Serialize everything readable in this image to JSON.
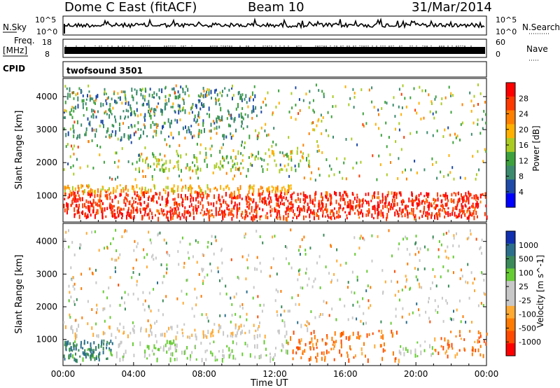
{
  "header": {
    "station": "Dome C East (fitACF)",
    "beam": "Beam 10",
    "date": "31/Mar/2014"
  },
  "summary_panels": {
    "nsky_label": "N.Sky",
    "nsky_ticks": [
      "10^5",
      "10^0"
    ],
    "nsearch_label": "N.Search",
    "nsearch_ticks": [
      "10^5",
      "10^0"
    ],
    "freq_label": "Freq.",
    "freq_unit": "[MHz]",
    "freq_ticks": [
      "18",
      "8"
    ],
    "nave_label": "Nave",
    "nave_ticks": [
      "60",
      "0"
    ],
    "cpid_label": "CPID",
    "cpid_value": "twofsound 3501"
  },
  "chart_data": [
    {
      "type": "heatmap",
      "panel": "power",
      "ylabel": "Slant Range [km]",
      "ylim": [
        200,
        4550
      ],
      "yticks": [
        1000,
        2000,
        3000,
        4000
      ],
      "xlim": [
        0,
        24
      ],
      "colorbar_label": "Power [dB]",
      "colorbar_ticks": [
        "28",
        "24",
        "20",
        "16",
        "12",
        "8",
        "4"
      ],
      "colorbar_colors": [
        "#ff0000",
        "#ff3a00",
        "#ff8000",
        "#ffb000",
        "#aacc22",
        "#3da23d",
        "#3c8a6e",
        "#1f4aa8",
        "#0000ff"
      ],
      "bands": [
        {
          "range_km": [
            350,
            1150
          ],
          "t": [
            0,
            24
          ],
          "level": 0.92
        },
        {
          "range_km": [
            1150,
            1350
          ],
          "t": [
            0,
            13
          ],
          "level": 0.65
        },
        {
          "range_km": [
            1800,
            2400
          ],
          "t": [
            4,
            14
          ],
          "level": 0.45
        },
        {
          "range_km": [
            2800,
            4300
          ],
          "t": [
            0,
            11
          ],
          "level": 0.25
        }
      ]
    },
    {
      "type": "heatmap",
      "panel": "velocity",
      "ylabel": "Slant Range [km]",
      "xlabel": "Time UT",
      "ylim": [
        200,
        4550
      ],
      "yticks": [
        1000,
        2000,
        3000,
        4000
      ],
      "xlim": [
        0,
        24
      ],
      "xticks": [
        "00:00",
        "04:00",
        "08:00",
        "12:00",
        "16:00",
        "20:00",
        "00:00"
      ],
      "colorbar_label": "Velocity [m s^-1]",
      "colorbar_ticks": [
        "1000",
        "500",
        "100",
        "25",
        "-25",
        "-100",
        "-500",
        "-1000"
      ],
      "colorbar_colors": [
        "#1030b0",
        "#2c6f8c",
        "#3b8a5a",
        "#66cc33",
        "#c8c8c8",
        "#c8c8c8",
        "#ffaa33",
        "#ff7a00",
        "#ff4a00",
        "#ff0000"
      ],
      "bands": [
        {
          "range_km": [
            400,
            1000
          ],
          "t": [
            0,
            3
          ],
          "level": 0.8
        },
        {
          "range_km": [
            400,
            1000
          ],
          "t": [
            3,
            12.7
          ],
          "level": 0.6
        },
        {
          "range_km": [
            400,
            1300
          ],
          "t": [
            12.7,
            19
          ],
          "level": 0.2
        },
        {
          "range_km": [
            500,
            1000
          ],
          "t": [
            19,
            21
          ],
          "level": 0.6
        },
        {
          "range_km": [
            500,
            1300
          ],
          "t": [
            21,
            24
          ],
          "level": 0.2
        },
        {
          "range_km": [
            1100,
            1500
          ],
          "t": [
            0,
            14
          ],
          "level": 0.4
        }
      ]
    }
  ]
}
